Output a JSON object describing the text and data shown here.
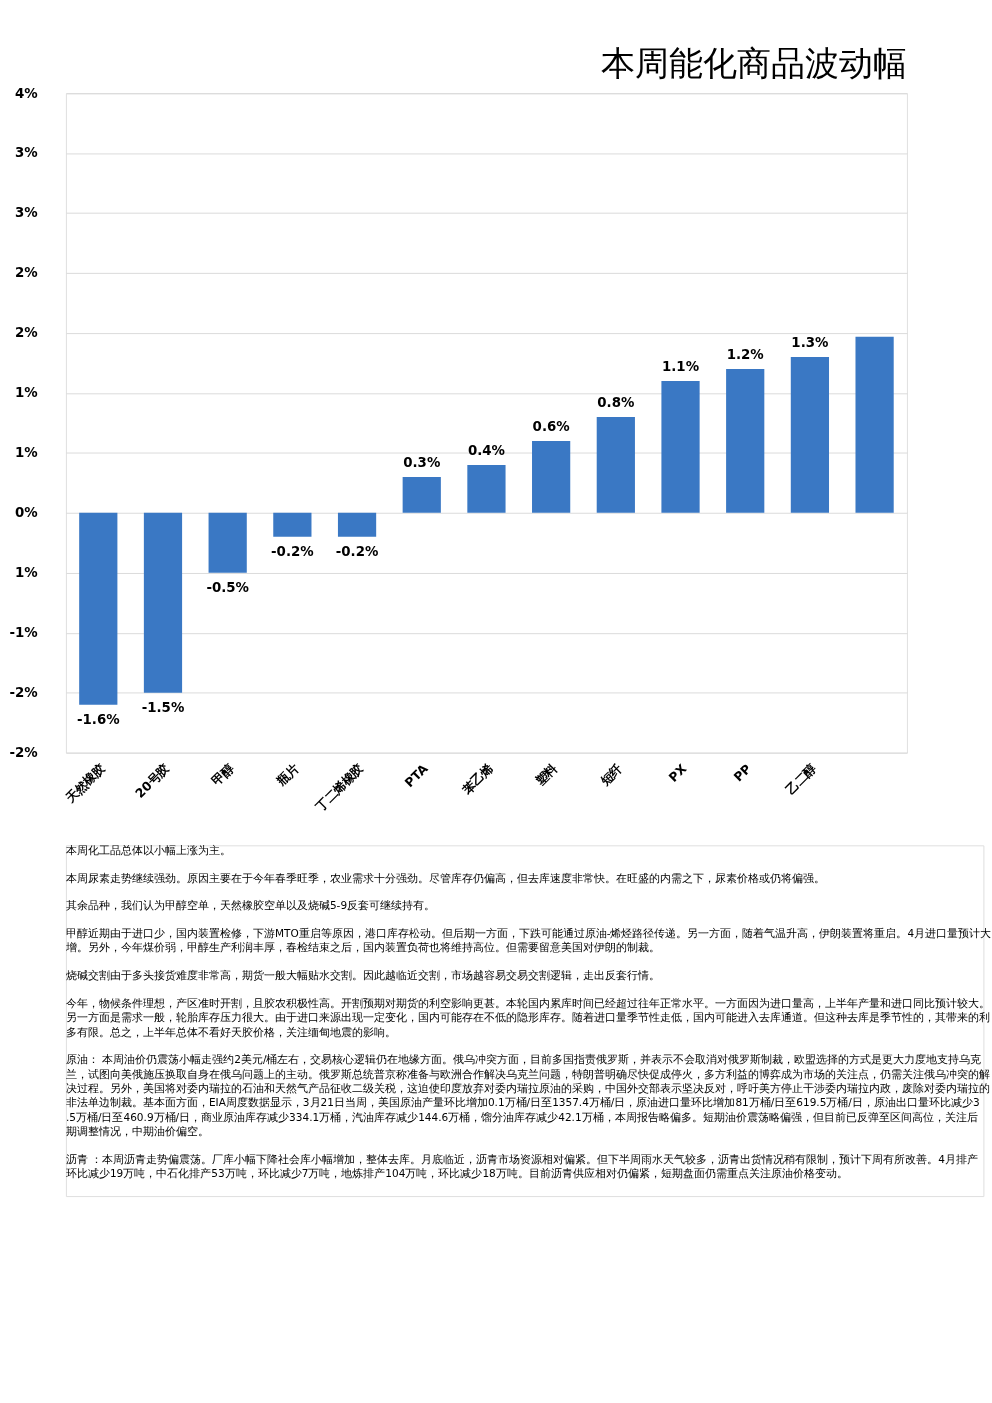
{
  "chart_data": {
    "type": "bar",
    "title": "本周能化商品波动幅",
    "categories": [
      "天然橡胶",
      "20号胶",
      "甲醇",
      "瓶片",
      "丁二烯橡胶",
      "PTA",
      "苯乙烯",
      "塑料",
      "短纤",
      "PX",
      "PP",
      "乙二醇",
      null
    ],
    "values": [
      -1.6,
      -1.5,
      -0.5,
      -0.2,
      -0.2,
      0.3,
      0.4,
      0.6,
      0.8,
      1.1,
      1.2,
      1.3,
      1.47
    ],
    "value_labels": [
      "-1.6%",
      "-1.5%",
      "-0.5%",
      "-0.2%",
      "-0.2%",
      "0.3%",
      "0.4%",
      "0.6%",
      "0.8%",
      "1.1%",
      "1.2%",
      "1.3%",
      null
    ],
    "color": "#3a78c4",
    "ylim": [
      -2,
      3.5
    ],
    "yticks": [
      {
        "value": -2,
        "label": "-2%"
      },
      {
        "value": -1.5,
        "label": "-2%"
      },
      {
        "value": -1,
        "label": "-1%"
      },
      {
        "value": -0.5,
        "label": "1%"
      },
      {
        "value": 0,
        "label": "0%"
      },
      {
        "value": 0.5,
        "label": "1%"
      },
      {
        "value": 1,
        "label": "1%"
      },
      {
        "value": 1.5,
        "label": "2%"
      },
      {
        "value": 2,
        "label": "2%"
      },
      {
        "value": 2.5,
        "label": "3%"
      },
      {
        "value": 3,
        "label": "3%"
      },
      {
        "value": 3.5,
        "label": "4%"
      }
    ],
    "grid": "y",
    "annotations": [
      "本周化工品总体以小幅上涨为主。",
      "本周尿素走势继续强劲。原因主要在于今年春季旺季，农业需求十分强劲。尽管库存仍偏高，但去库速度非常快。在旺盛的内需之下，尿素价格或仍将偏强。",
      "其余品种，我们认为甲醇空单，天然橡胶空单以及烧碱5-9反套可继续持有。",
      "甲醇近期由于进口少，国内装置检修，下游MTO重启等原因，港口库存松动。但后期一方面，下跌可能通过原油-烯烃路径传递。另一方面，随着气温升高，伊朗装置将重启。4月进口量预计大增。另外，今年煤价弱，甲醇生产利润丰厚，春检结束之后，国内装置负荷也将维持高位。但需要留意美国对伊朗的制裁。",
      "烧碱交割由于多头接货难度非常高，期货一般大幅贴水交割。因此越临近交割，市场越容易交易交割逻辑，走出反套行情。",
      "今年，物候条件理想，产区准时开割，且胶农积极性高。开割预期对期货的利空影响更甚。本轮国内累库时间已经超过往年正常水平。一方面因为进口量高，上半年产量和进口同比预计较大。另一方面是需求一般，轮胎库存压力很大。由于进口来源出现一定变化，国内可能存在不低的隐形库存。随着进口量季节性走低，国内可能进入去库通道。但这种去库是季节性的，其带来的利多有限。总之，上半年总体不看好天胶价格，关注缅甸地震的影响。",
      "原油： 本周油价仍震荡小幅走强约2美元/桶左右，交易核心逻辑仍在地缘方面。俄乌冲突方面，目前多国指责俄罗斯，并表示不会取消对俄罗斯制裁，欧盟选择的方式是更大力度地支持乌克兰，试图向美俄施压换取自身在俄乌问题上的主动。俄罗斯总统普京称准备与欧洲合作解决乌克兰问题，特朗普明确尽快促成停火，多方利益的博弈成为市场的关注点，仍需关注俄乌冲突的解决过程。另外，美国将对委内瑞拉的石油和天然气产品征收二级关税，这迫使印度放弃对委内瑞拉原油的采购，中国外交部表示坚决反对，呼吁美方停止干涉委内瑞拉内政，废除对委内瑞拉的非法单边制裁。基本面方面，EIA周度数据显示，3月21日当周，美国原油产量环比增加0.1万桶/日至1357.4万桶/日，原油进口量环比增加81万桶/日至619.5万桶/日，原油出口量环比减少3.5万桶/日至460.9万桶/日，商业原油库存减少334.1万桶，汽油库存减少144.6万桶，馏分油库存减少42.1万桶，本周报告略偏多。短期油价震荡略偏强，但目前已反弹至区间高位，关注后期调整情况，中期油价偏空。",
      "沥青 ：本周沥青走势偏震荡。厂库小幅下降社会库小幅增加，整体去库。月底临近，沥青市场资源相对偏紧。但下半周雨水天气较多，沥青出货情况稍有限制，预计下周有所改善。4月排产环比减少19万吨，中石化排产53万吨，环比减少7万吨，地炼排产104万吨，环比减少18万吨。目前沥青供应相对仍偏紧，短期盘面仍需重点关注原油价格变动。"
    ]
  }
}
